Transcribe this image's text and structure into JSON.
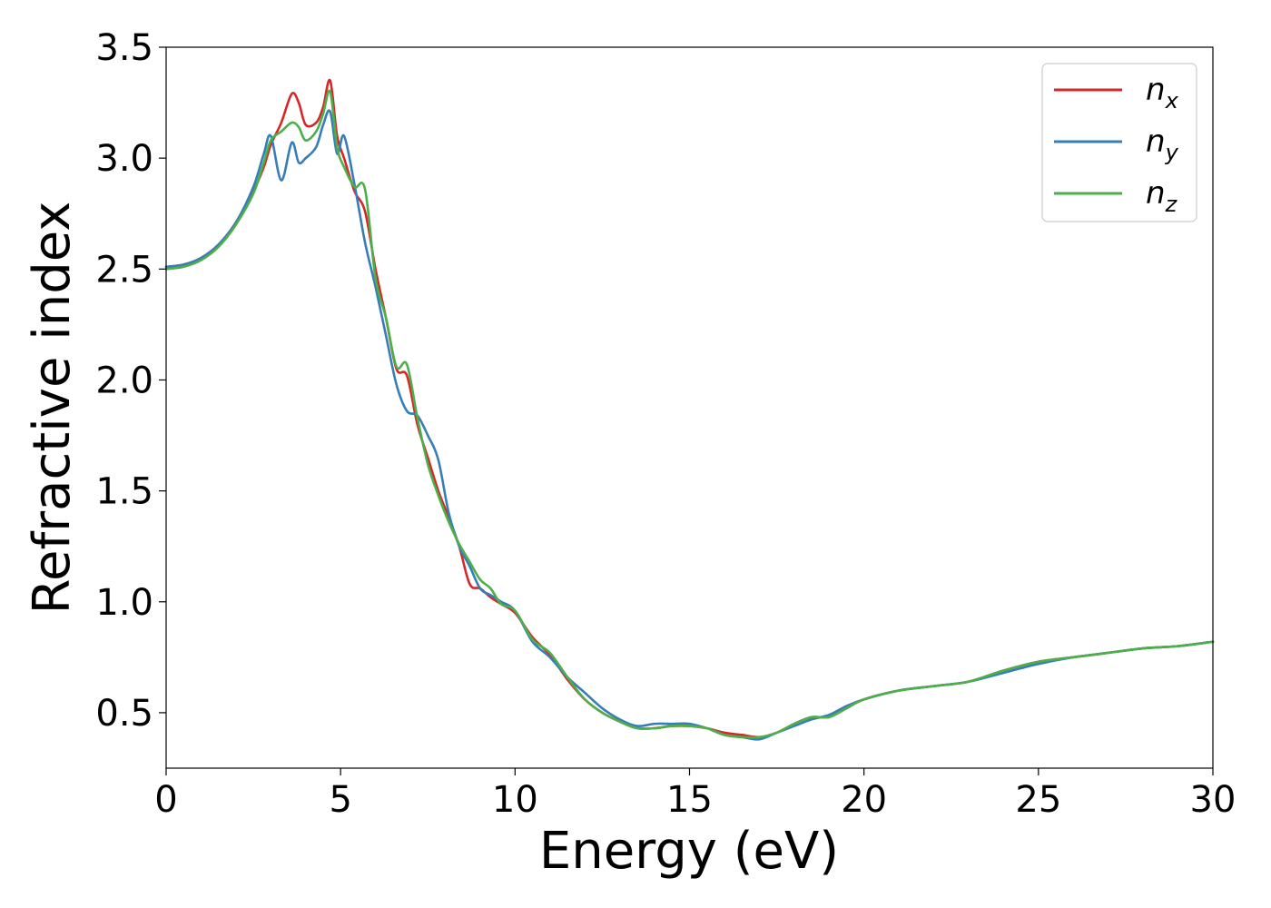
{
  "chart_data": {
    "type": "line",
    "title": "",
    "xlabel": "Energy (eV)",
    "ylabel": "Refractive index",
    "xlim": [
      0,
      30
    ],
    "ylim": [
      0.25,
      3.5
    ],
    "xticks": [
      0,
      5,
      10,
      15,
      20,
      25,
      30
    ],
    "xtick_labels": [
      "0",
      "5",
      "10",
      "15",
      "20",
      "25",
      "30"
    ],
    "yticks": [
      0.5,
      1.0,
      1.5,
      2.0,
      2.5,
      3.0,
      3.5
    ],
    "ytick_labels": [
      "0.5",
      "1.0",
      "1.5",
      "2.0",
      "2.5",
      "3.0",
      "3.5"
    ],
    "grid": false,
    "legend_position": "top-right",
    "series": [
      {
        "name": "n",
        "subscript": "x",
        "color": "#d62728",
        "x": [
          0,
          0.5,
          1,
          1.5,
          2,
          2.5,
          2.8,
          3.0,
          3.3,
          3.6,
          3.8,
          4.0,
          4.3,
          4.5,
          4.7,
          4.9,
          5.1,
          5.4,
          5.7,
          6.0,
          6.3,
          6.6,
          6.9,
          7.2,
          7.5,
          7.8,
          8.1,
          8.4,
          8.7,
          9.0,
          9.3,
          9.6,
          10,
          10.5,
          11,
          11.5,
          12,
          12.5,
          13,
          13.5,
          14,
          14.5,
          15,
          15.5,
          16,
          16.5,
          17,
          17.5,
          18,
          18.5,
          19,
          19.5,
          20,
          21,
          22,
          23,
          24,
          25,
          26,
          27,
          28,
          29,
          30
        ],
        "y": [
          2.51,
          2.52,
          2.55,
          2.61,
          2.71,
          2.85,
          2.96,
          3.06,
          3.16,
          3.29,
          3.25,
          3.15,
          3.16,
          3.23,
          3.35,
          3.1,
          3.0,
          2.85,
          2.76,
          2.5,
          2.28,
          2.05,
          2.02,
          1.8,
          1.65,
          1.5,
          1.38,
          1.25,
          1.08,
          1.06,
          1.02,
          0.99,
          0.95,
          0.84,
          0.76,
          0.65,
          0.56,
          0.5,
          0.46,
          0.43,
          0.43,
          0.44,
          0.44,
          0.43,
          0.41,
          0.4,
          0.39,
          0.41,
          0.45,
          0.48,
          0.48,
          0.52,
          0.56,
          0.6,
          0.62,
          0.64,
          0.69,
          0.73,
          0.75,
          0.77,
          0.79,
          0.8,
          0.82
        ]
      },
      {
        "name": "n",
        "subscript": "y",
        "color": "#377eb8",
        "x": [
          0,
          0.5,
          1,
          1.5,
          2,
          2.5,
          2.8,
          3.0,
          3.3,
          3.6,
          3.8,
          4.0,
          4.3,
          4.5,
          4.7,
          4.9,
          5.1,
          5.4,
          5.7,
          6.0,
          6.3,
          6.6,
          6.9,
          7.2,
          7.5,
          7.8,
          8.1,
          8.4,
          8.7,
          9.0,
          9.3,
          9.6,
          10,
          10.5,
          11,
          11.5,
          12,
          12.5,
          13,
          13.5,
          14,
          14.5,
          15,
          15.5,
          16,
          16.5,
          17,
          17.5,
          18,
          18.5,
          19,
          19.5,
          20,
          21,
          22,
          23,
          24,
          25,
          26,
          27,
          28,
          29,
          30
        ],
        "y": [
          2.51,
          2.52,
          2.55,
          2.61,
          2.71,
          2.87,
          3.02,
          3.1,
          2.9,
          3.07,
          2.98,
          3.0,
          3.05,
          3.15,
          3.21,
          3.02,
          3.1,
          2.88,
          2.62,
          2.42,
          2.2,
          1.98,
          1.86,
          1.84,
          1.75,
          1.64,
          1.4,
          1.25,
          1.16,
          1.06,
          1.03,
          1.0,
          0.96,
          0.82,
          0.75,
          0.66,
          0.59,
          0.52,
          0.47,
          0.44,
          0.45,
          0.45,
          0.45,
          0.43,
          0.4,
          0.39,
          0.38,
          0.41,
          0.44,
          0.47,
          0.49,
          0.53,
          0.56,
          0.6,
          0.62,
          0.64,
          0.68,
          0.72,
          0.75,
          0.77,
          0.79,
          0.8,
          0.82
        ]
      },
      {
        "name": "n",
        "subscript": "z",
        "color": "#4daf4a",
        "x": [
          0,
          0.5,
          1,
          1.5,
          2,
          2.5,
          2.8,
          3.0,
          3.3,
          3.6,
          3.8,
          4.0,
          4.3,
          4.5,
          4.7,
          4.9,
          5.1,
          5.4,
          5.7,
          6.0,
          6.3,
          6.6,
          6.9,
          7.2,
          7.5,
          7.8,
          8.1,
          8.4,
          8.7,
          9.0,
          9.3,
          9.6,
          10,
          10.5,
          11,
          11.5,
          12,
          12.5,
          13,
          13.5,
          14,
          14.5,
          15,
          15.5,
          16,
          16.5,
          17,
          17.5,
          18,
          18.5,
          19,
          19.5,
          20,
          21,
          22,
          23,
          24,
          25,
          26,
          27,
          28,
          29,
          30
        ],
        "y": [
          2.5,
          2.51,
          2.54,
          2.6,
          2.7,
          2.84,
          2.98,
          3.08,
          3.12,
          3.16,
          3.14,
          3.08,
          3.12,
          3.2,
          3.3,
          3.05,
          2.96,
          2.87,
          2.86,
          2.46,
          2.28,
          2.06,
          2.07,
          1.83,
          1.62,
          1.48,
          1.36,
          1.26,
          1.18,
          1.1,
          1.06,
          0.99,
          0.96,
          0.83,
          0.77,
          0.66,
          0.56,
          0.5,
          0.46,
          0.43,
          0.43,
          0.44,
          0.44,
          0.43,
          0.4,
          0.39,
          0.39,
          0.41,
          0.45,
          0.48,
          0.48,
          0.52,
          0.56,
          0.6,
          0.62,
          0.64,
          0.69,
          0.73,
          0.75,
          0.77,
          0.79,
          0.8,
          0.82
        ]
      }
    ]
  }
}
